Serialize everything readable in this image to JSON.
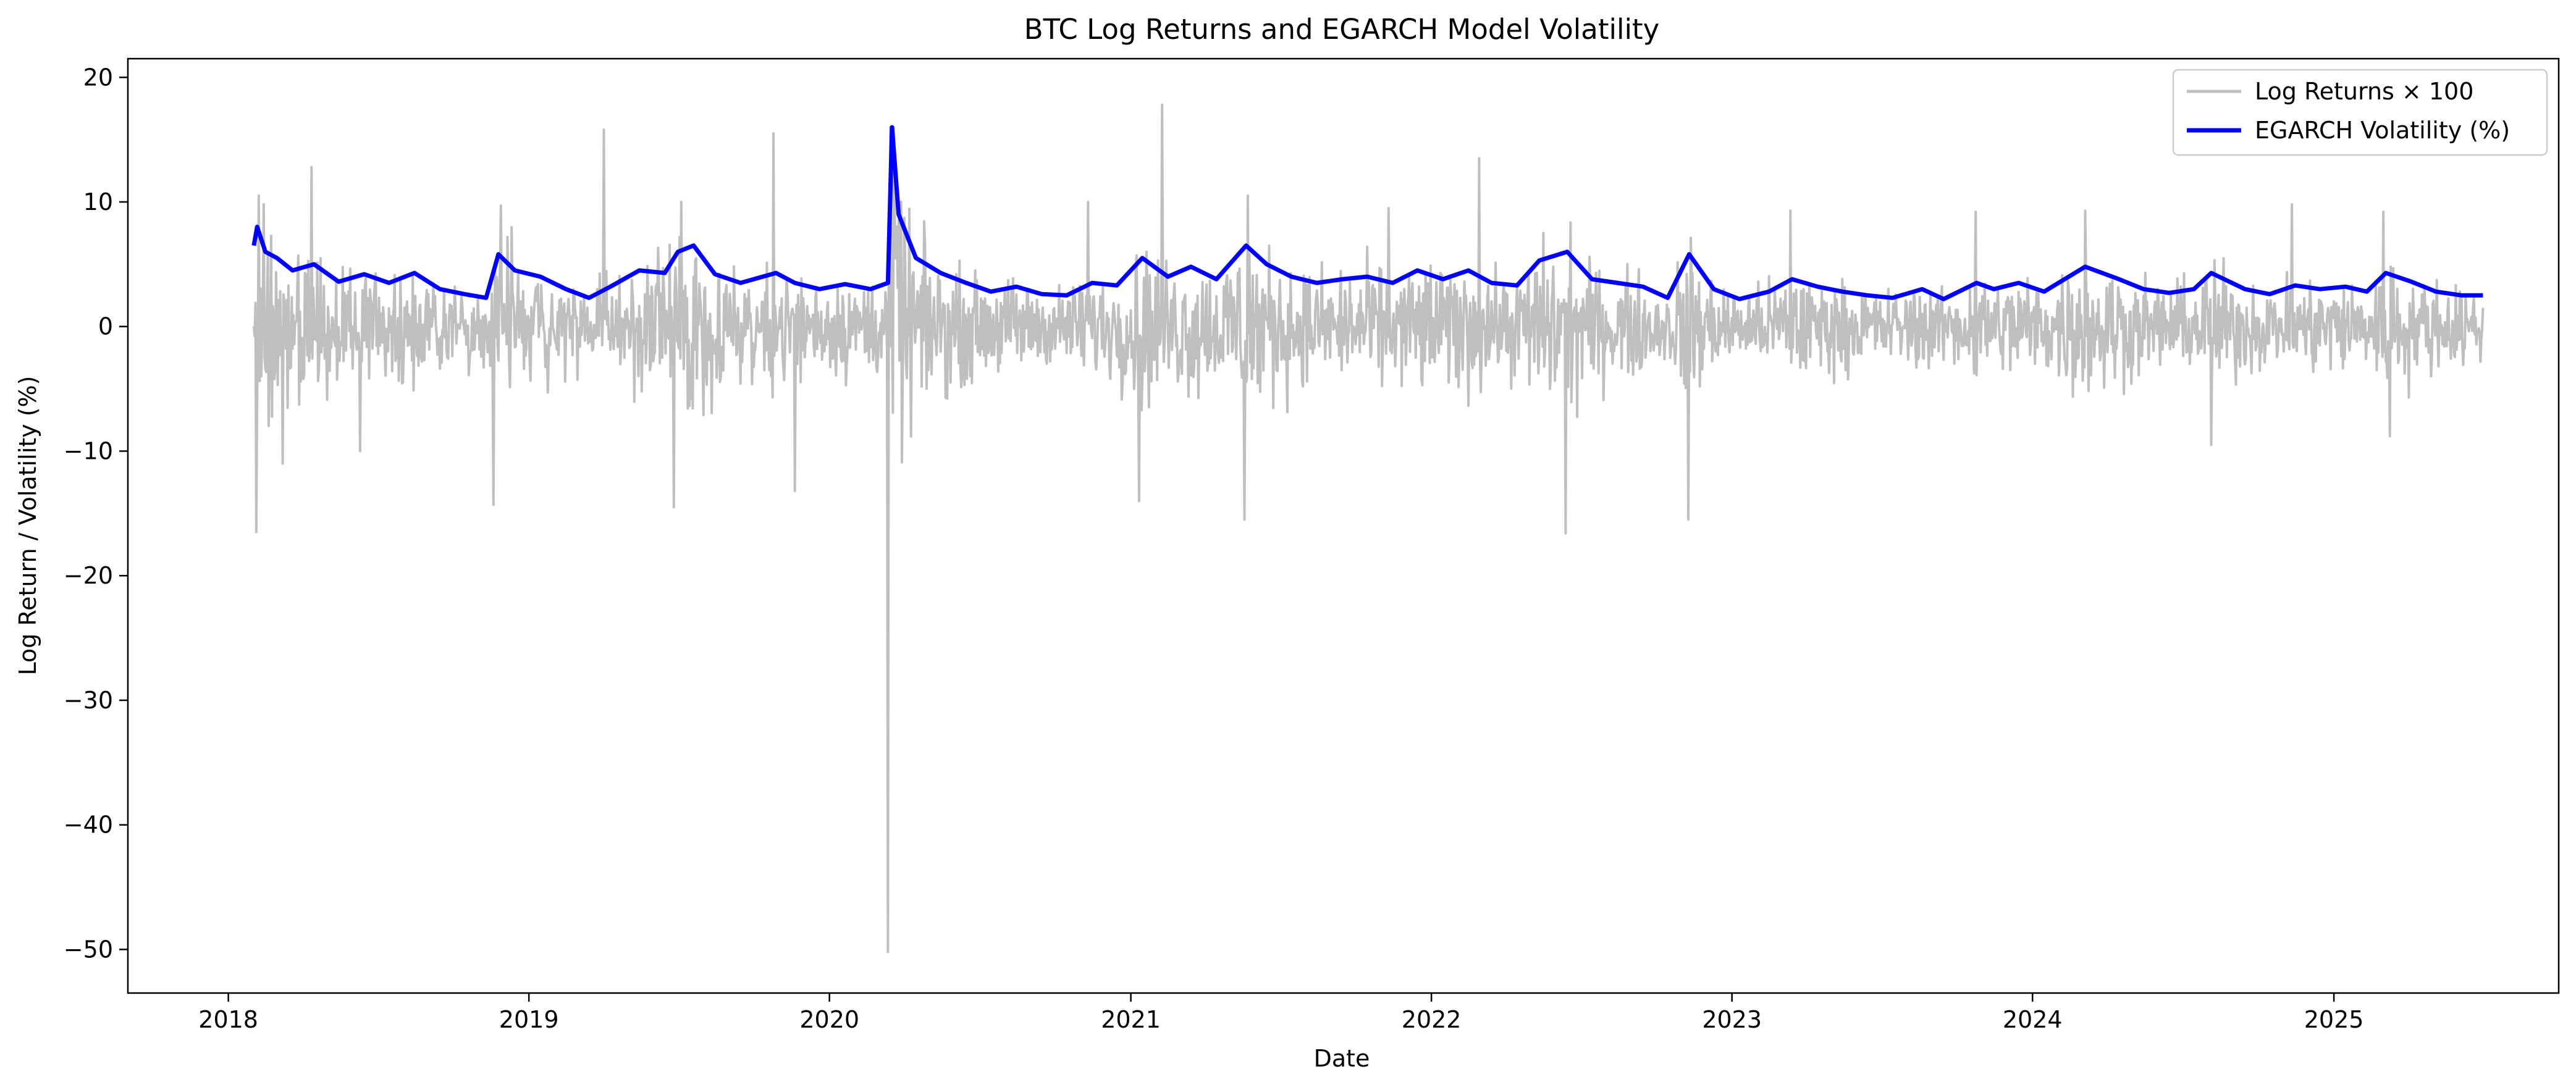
{
  "chart_data": {
    "type": "line",
    "title": "BTC Log Returns and EGARCH Model Volatility",
    "xlabel": "Date",
    "ylabel": "Log Return / Volatility (%)",
    "xlim": [
      "2017-09-01",
      "2025-10-01"
    ],
    "ylim": [
      -53.5,
      21.5
    ],
    "x_ticks": [
      "2018",
      "2019",
      "2020",
      "2021",
      "2022",
      "2023",
      "2024",
      "2025"
    ],
    "y_ticks": [
      20,
      10,
      0,
      -10,
      -20,
      -30,
      -40,
      -50
    ],
    "y_tick_labels": [
      "20",
      "10",
      "0",
      "−10",
      "−20",
      "−30",
      "−40",
      "−50"
    ],
    "grid": false,
    "legend_position": "top-right",
    "series": [
      {
        "name": "Log Returns × 100",
        "color": "#bfbfbf",
        "kind": "returns",
        "points": [
          [
            "2018-02-01",
            0
          ],
          [
            "2018-02-04",
            -16.5
          ],
          [
            "2018-02-07",
            10.5
          ],
          [
            "2018-02-10",
            -4.0
          ],
          [
            "2018-02-13",
            9.8
          ],
          [
            "2018-03-08",
            -11.0
          ],
          [
            "2018-04-12",
            12.8
          ],
          [
            "2018-06-10",
            -10.0
          ],
          [
            "2018-11-19",
            -14.3
          ],
          [
            "2018-11-28",
            9.7
          ],
          [
            "2019-04-02",
            15.8
          ],
          [
            "2019-06-26",
            -14.5
          ],
          [
            "2019-07-05",
            10.0
          ],
          [
            "2019-10-25",
            15.5
          ],
          [
            "2019-11-20",
            -13.2
          ],
          [
            "2020-03-12",
            -50.2
          ],
          [
            "2020-03-19",
            16.0
          ],
          [
            "2020-03-25",
            8.5
          ],
          [
            "2020-11-10",
            10.0
          ],
          [
            "2021-01-11",
            -14.0
          ],
          [
            "2021-02-08",
            17.8
          ],
          [
            "2021-05-19",
            -15.5
          ],
          [
            "2021-05-23",
            10.5
          ],
          [
            "2021-11-10",
            9.5
          ],
          [
            "2022-02-28",
            13.5
          ],
          [
            "2022-06-13",
            -16.6
          ],
          [
            "2022-11-09",
            -15.5
          ],
          [
            "2023-03-13",
            9.3
          ],
          [
            "2023-10-24",
            9.2
          ],
          [
            "2024-03-05",
            9.3
          ],
          [
            "2024-08-05",
            -9.5
          ],
          [
            "2024-11-11",
            9.8
          ],
          [
            "2025-03-02",
            9.2
          ],
          [
            "2025-03-10",
            -8.8
          ],
          [
            "2025-07-01",
            1.5
          ]
        ]
      },
      {
        "name": "EGARCH Volatility (%)",
        "color": "#0000ff",
        "kind": "volatility",
        "points": [
          [
            "2018-02-01",
            6.5
          ],
          [
            "2018-02-05",
            8.0
          ],
          [
            "2018-02-15",
            6.0
          ],
          [
            "2018-03-01",
            5.5
          ],
          [
            "2018-03-20",
            4.5
          ],
          [
            "2018-04-15",
            5.0
          ],
          [
            "2018-05-15",
            3.6
          ],
          [
            "2018-06-15",
            4.2
          ],
          [
            "2018-07-15",
            3.5
          ],
          [
            "2018-08-15",
            4.3
          ],
          [
            "2018-09-15",
            3.0
          ],
          [
            "2018-10-15",
            2.6
          ],
          [
            "2018-11-10",
            2.3
          ],
          [
            "2018-11-25",
            5.8
          ],
          [
            "2018-12-15",
            4.5
          ],
          [
            "2019-01-15",
            4.0
          ],
          [
            "2019-02-15",
            3.0
          ],
          [
            "2019-03-15",
            2.3
          ],
          [
            "2019-04-10",
            3.2
          ],
          [
            "2019-05-15",
            4.5
          ],
          [
            "2019-06-15",
            4.3
          ],
          [
            "2019-07-01",
            6.0
          ],
          [
            "2019-07-20",
            6.5
          ],
          [
            "2019-08-15",
            4.2
          ],
          [
            "2019-09-15",
            3.5
          ],
          [
            "2019-10-28",
            4.3
          ],
          [
            "2019-11-20",
            3.5
          ],
          [
            "2019-12-20",
            3.0
          ],
          [
            "2020-01-20",
            3.4
          ],
          [
            "2020-02-20",
            3.0
          ],
          [
            "2020-03-12",
            3.5
          ],
          [
            "2020-03-17",
            16.0
          ],
          [
            "2020-03-25",
            9.0
          ],
          [
            "2020-04-15",
            5.5
          ],
          [
            "2020-05-15",
            4.3
          ],
          [
            "2020-06-15",
            3.5
          ],
          [
            "2020-07-15",
            2.8
          ],
          [
            "2020-08-15",
            3.2
          ],
          [
            "2020-09-15",
            2.6
          ],
          [
            "2020-10-15",
            2.5
          ],
          [
            "2020-11-15",
            3.5
          ],
          [
            "2020-12-15",
            3.3
          ],
          [
            "2021-01-15",
            5.5
          ],
          [
            "2021-02-15",
            4.0
          ],
          [
            "2021-03-15",
            4.8
          ],
          [
            "2021-04-15",
            3.8
          ],
          [
            "2021-05-21",
            6.5
          ],
          [
            "2021-06-15",
            5.0
          ],
          [
            "2021-07-15",
            4.0
          ],
          [
            "2021-08-15",
            3.5
          ],
          [
            "2021-09-15",
            3.8
          ],
          [
            "2021-10-15",
            4.0
          ],
          [
            "2021-11-15",
            3.5
          ],
          [
            "2021-12-15",
            4.5
          ],
          [
            "2022-01-15",
            3.8
          ],
          [
            "2022-02-15",
            4.5
          ],
          [
            "2022-03-15",
            3.5
          ],
          [
            "2022-04-15",
            3.3
          ],
          [
            "2022-05-12",
            5.3
          ],
          [
            "2022-06-15",
            6.0
          ],
          [
            "2022-07-15",
            3.8
          ],
          [
            "2022-08-15",
            3.5
          ],
          [
            "2022-09-15",
            3.2
          ],
          [
            "2022-10-15",
            2.3
          ],
          [
            "2022-11-10",
            5.8
          ],
          [
            "2022-12-10",
            3.0
          ],
          [
            "2023-01-10",
            2.2
          ],
          [
            "2023-02-15",
            2.8
          ],
          [
            "2023-03-15",
            3.8
          ],
          [
            "2023-04-15",
            3.2
          ],
          [
            "2023-05-15",
            2.8
          ],
          [
            "2023-06-15",
            2.5
          ],
          [
            "2023-07-15",
            2.3
          ],
          [
            "2023-08-20",
            3.0
          ],
          [
            "2023-09-15",
            2.2
          ],
          [
            "2023-10-25",
            3.5
          ],
          [
            "2023-11-15",
            3.0
          ],
          [
            "2023-12-15",
            3.5
          ],
          [
            "2024-01-15",
            2.8
          ],
          [
            "2024-03-05",
            4.8
          ],
          [
            "2024-04-15",
            3.8
          ],
          [
            "2024-05-15",
            3.0
          ],
          [
            "2024-06-15",
            2.7
          ],
          [
            "2024-07-15",
            3.0
          ],
          [
            "2024-08-05",
            4.3
          ],
          [
            "2024-09-15",
            3.0
          ],
          [
            "2024-10-15",
            2.6
          ],
          [
            "2024-11-15",
            3.3
          ],
          [
            "2024-12-15",
            3.0
          ],
          [
            "2025-01-15",
            3.2
          ],
          [
            "2025-02-10",
            2.8
          ],
          [
            "2025-03-05",
            4.3
          ],
          [
            "2025-04-05",
            3.6
          ],
          [
            "2025-05-05",
            2.8
          ],
          [
            "2025-06-05",
            2.5
          ],
          [
            "2025-07-01",
            2.5
          ]
        ]
      }
    ]
  }
}
